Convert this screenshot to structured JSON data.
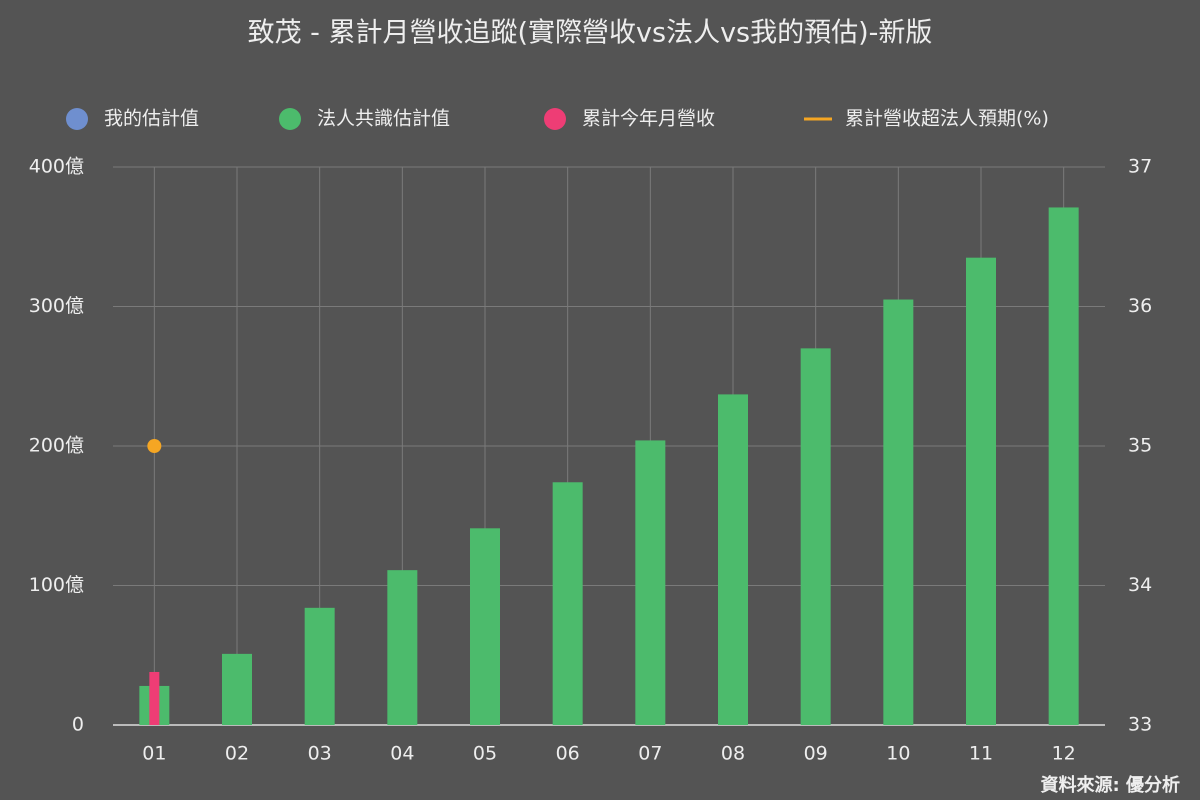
{
  "chart_data": {
    "type": "bar",
    "title": "致茂 - 累計月營收追蹤(實際營收vs法人vs我的預估)-新版",
    "categories": [
      "01",
      "02",
      "03",
      "04",
      "05",
      "06",
      "07",
      "08",
      "09",
      "10",
      "11",
      "12"
    ],
    "series": [
      {
        "name": "我的估計值",
        "type": "bar",
        "color": "#6f8fcf",
        "values": [
          null,
          null,
          null,
          null,
          null,
          null,
          null,
          null,
          null,
          null,
          null,
          null
        ]
      },
      {
        "name": "法人共識估計值",
        "type": "bar",
        "color": "#4cbb6c",
        "values": [
          28,
          51,
          84,
          111,
          141,
          174,
          204,
          237,
          270,
          305,
          335,
          371
        ]
      },
      {
        "name": "累計今年月營收",
        "type": "bar",
        "color": "#ee3d75",
        "values": [
          38,
          null,
          null,
          null,
          null,
          null,
          null,
          null,
          null,
          null,
          null,
          null
        ]
      },
      {
        "name": "累計營收超法人預期(%)",
        "type": "line",
        "axis": "y2",
        "color": "#f5a623",
        "values": [
          35,
          null,
          null,
          null,
          null,
          null,
          null,
          null,
          null,
          null,
          null,
          null
        ]
      }
    ],
    "ylim": [
      0,
      400
    ],
    "yticks": [
      0,
      {
        "value": 100,
        "label": "100億"
      },
      {
        "value": 200,
        "label": "200億"
      },
      {
        "value": 300,
        "label": "300億"
      },
      {
        "value": 400,
        "label": "400億"
      }
    ],
    "y2lim": [
      33,
      37
    ],
    "y2ticks": [
      33,
      34,
      35,
      36,
      37
    ],
    "grid": true,
    "legend": "top",
    "source": "資料來源: 優分析"
  }
}
